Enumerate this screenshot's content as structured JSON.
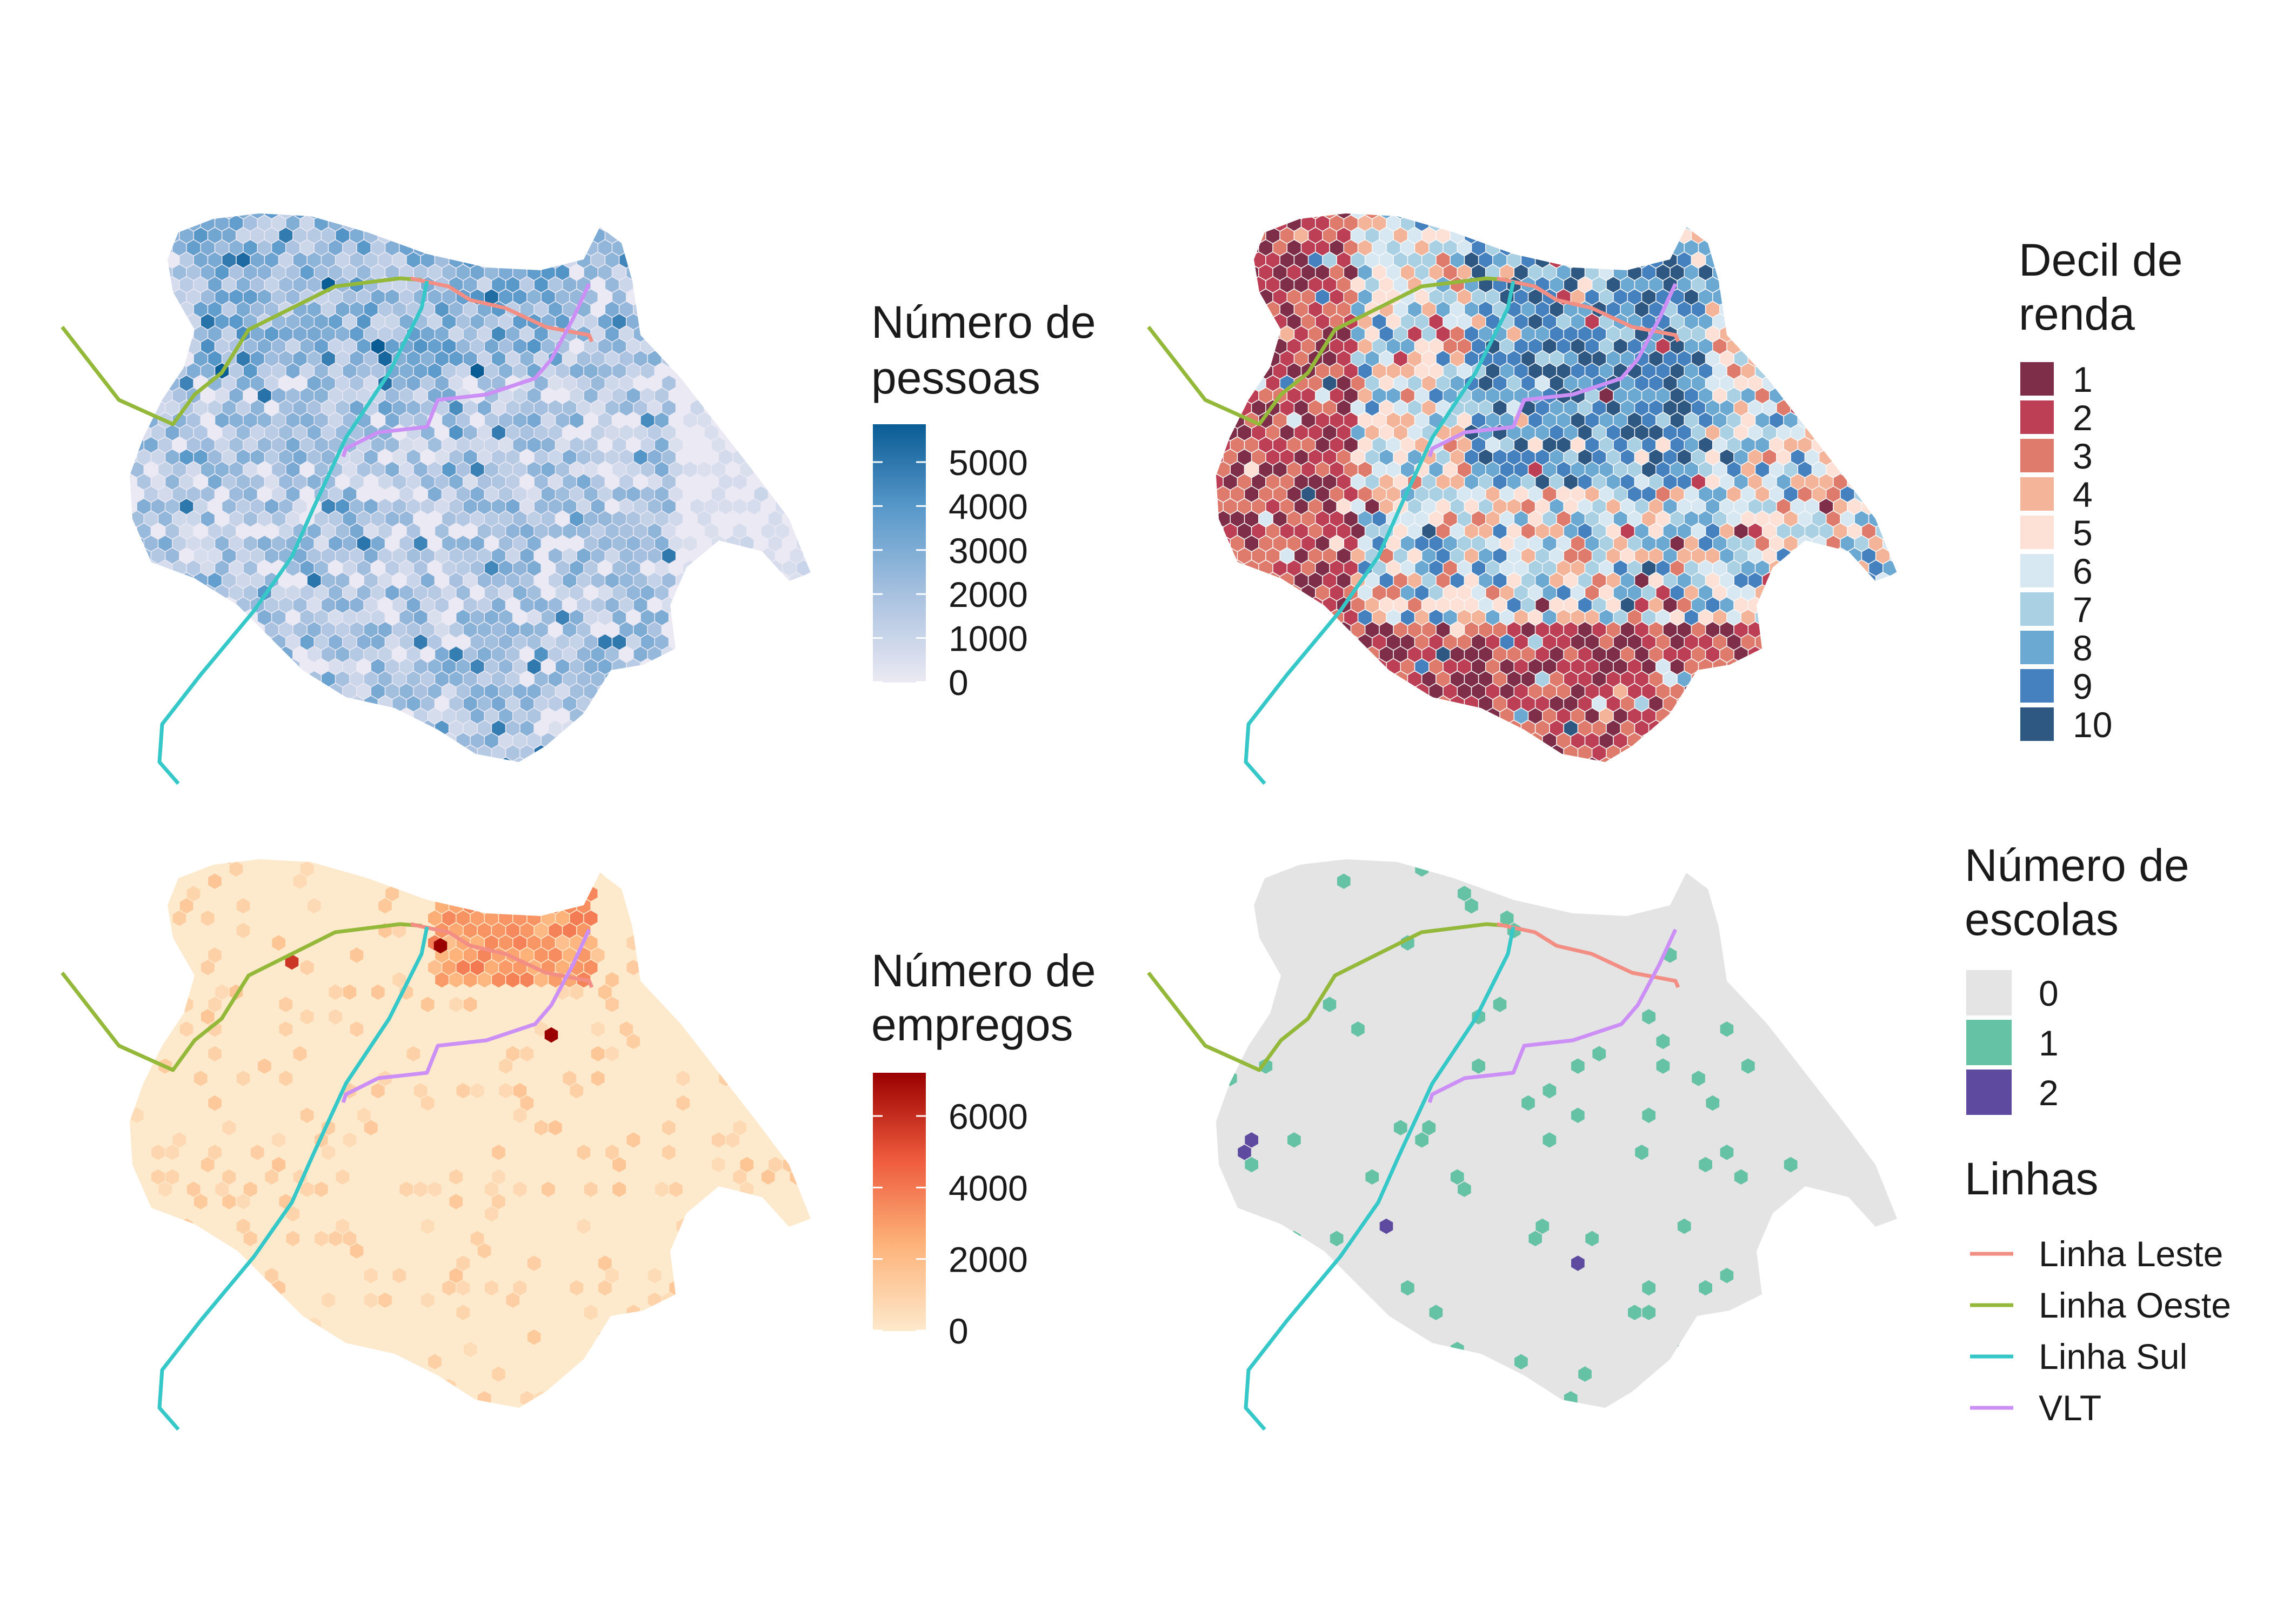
{
  "colors": {
    "linha_leste": "#f28e84",
    "linha_oeste": "#94b83a",
    "linha_sul": "#36c8c8",
    "vlt": "#cc8ff5",
    "map_pop_base": "#ebe9f3",
    "map_jobs_base": "#fde9cc",
    "map_school_base": "#e4e4e4",
    "school_1": "#66c2a5",
    "school_2": "#5e4ba0"
  },
  "panels": {
    "pop": {
      "legend_title": [
        "Número de",
        "pessoas"
      ],
      "ticks": [
        "5000",
        "4000",
        "3000",
        "2000",
        "1000",
        "0"
      ],
      "gradient": [
        "#ebe9f3",
        "#a9c2e0",
        "#5a9acb",
        "#0a5c95"
      ]
    },
    "renda": {
      "legend_title": [
        "Decil de",
        "renda"
      ],
      "labels": [
        "1",
        "2",
        "3",
        "4",
        "5",
        "6",
        "7",
        "8",
        "9",
        "10"
      ],
      "colors": [
        "#7e2e48",
        "#bd3f55",
        "#de7b6c",
        "#f4b49a",
        "#fde0d6",
        "#d7e8f3",
        "#aad0e4",
        "#6ca9d2",
        "#4681bf",
        "#2e5782"
      ]
    },
    "jobs": {
      "legend_title": [
        "Número de",
        "empregos"
      ],
      "ticks": [
        "6000",
        "4000",
        "2000",
        "0"
      ],
      "gradient": [
        "#fde9cc",
        "#fdb37a",
        "#ee5a3c",
        "#9a0000"
      ]
    },
    "schools": {
      "legend_title": [
        "Número de",
        "escolas"
      ],
      "labels": [
        "0",
        "1",
        "2"
      ],
      "colors": [
        "#e4e4e4",
        "#66c2a5",
        "#5e4ba0"
      ]
    }
  },
  "lines_legend": {
    "title": "Linhas",
    "items": [
      {
        "label": "Linha Leste",
        "color": "#f28e84"
      },
      {
        "label": "Linha Oeste",
        "color": "#94b83a"
      },
      {
        "label": "Linha Sul",
        "color": "#36c8c8"
      },
      {
        "label": "VLT",
        "color": "#cc8ff5"
      }
    ]
  }
}
